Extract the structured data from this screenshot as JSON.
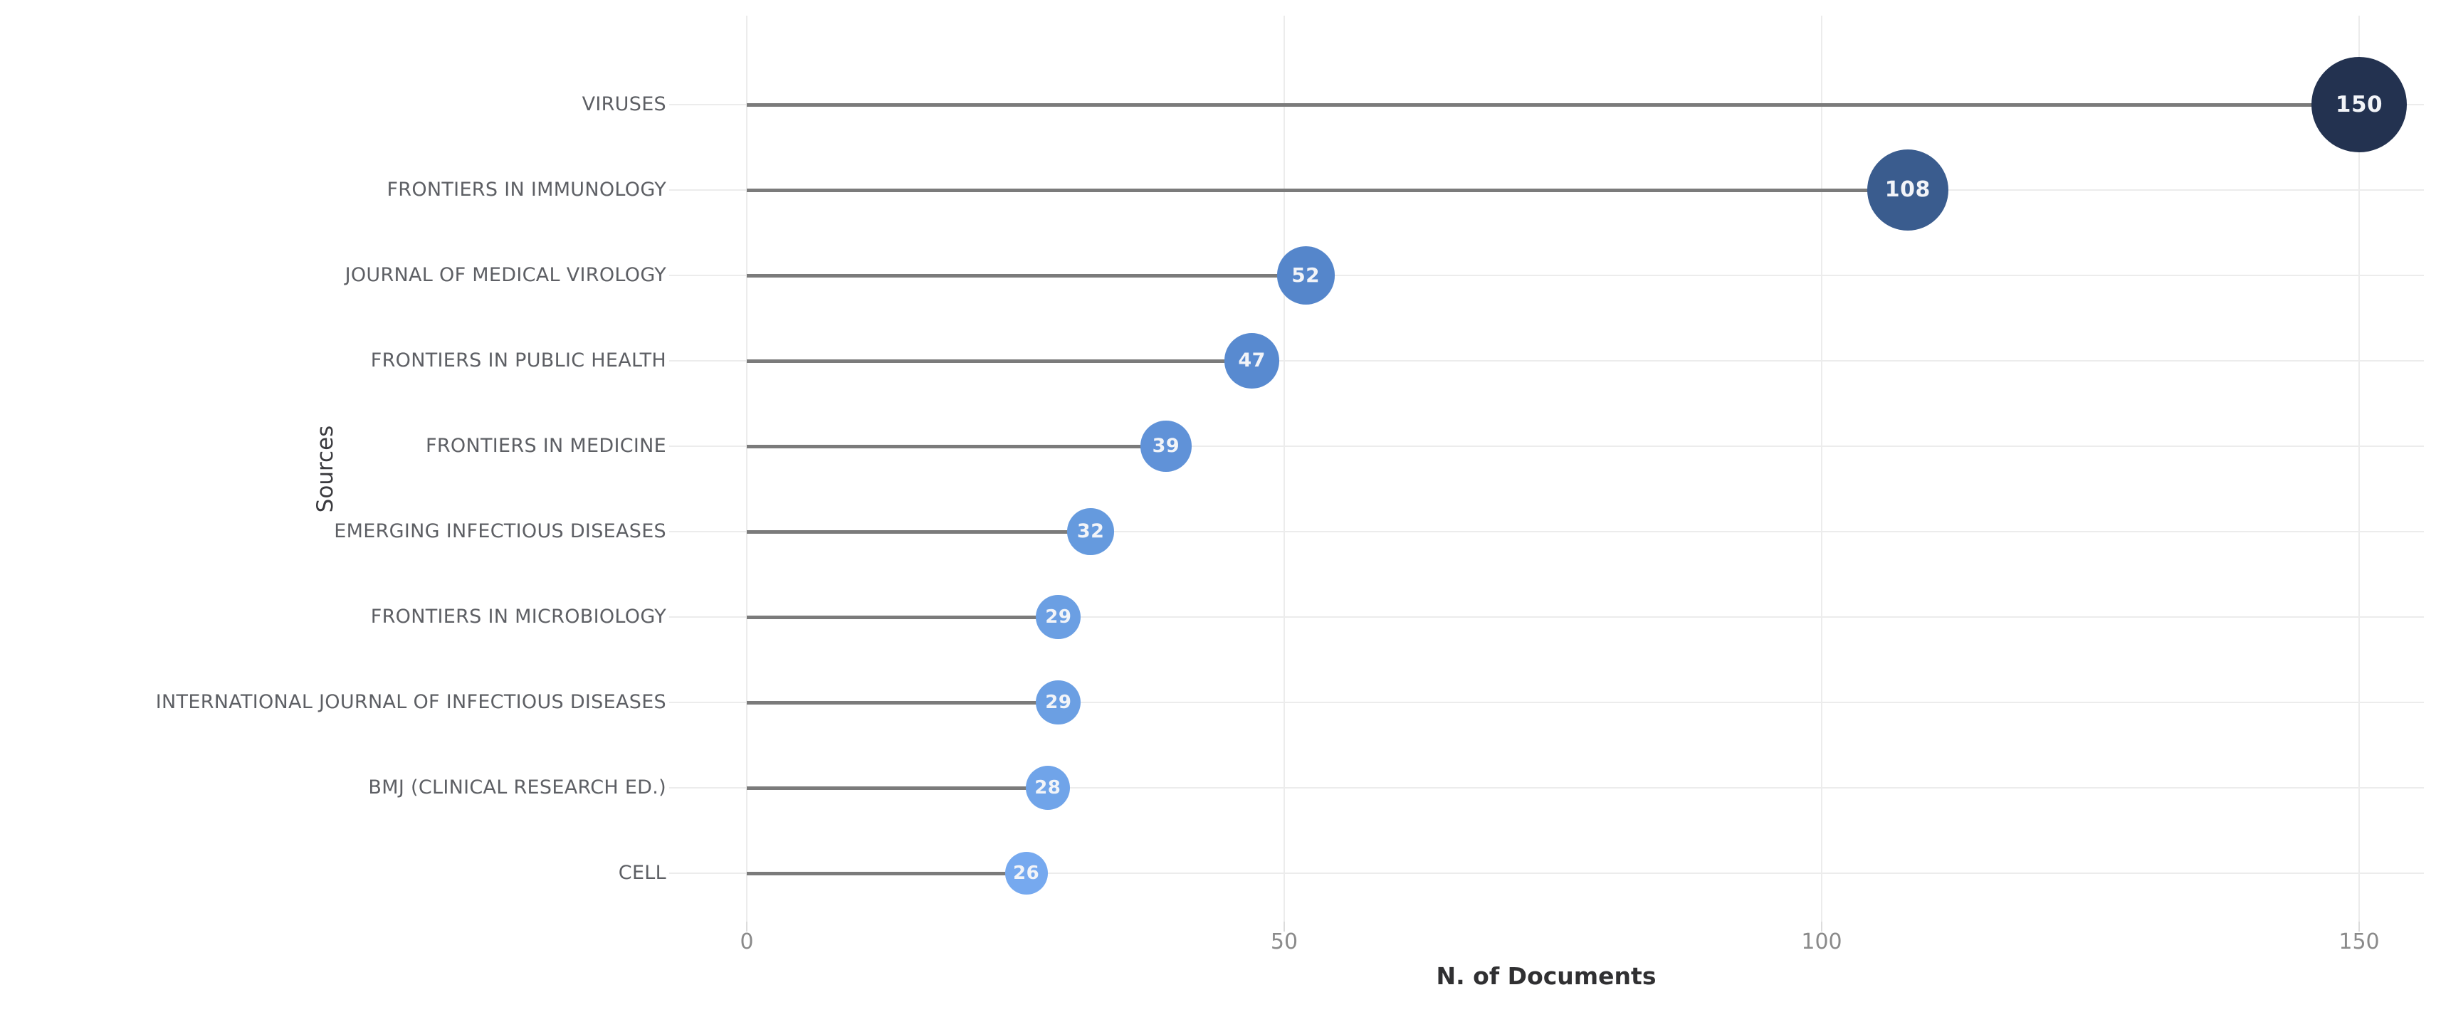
{
  "chart_data": {
    "type": "scatter",
    "variant": "horizontal-lollipop",
    "title": "",
    "xlabel": "N. of Documents",
    "ylabel": "Sources",
    "categories": [
      "VIRUSES",
      "FRONTIERS IN IMMUNOLOGY",
      "JOURNAL OF MEDICAL VIROLOGY",
      "FRONTIERS IN PUBLIC HEALTH",
      "FRONTIERS IN MEDICINE",
      "EMERGING INFECTIOUS DISEASES",
      "FRONTIERS IN MICROBIOLOGY",
      "INTERNATIONAL JOURNAL OF INFECTIOUS DISEASES",
      "BMJ (CLINICAL RESEARCH ED.)",
      "CELL"
    ],
    "values": [
      150,
      108,
      52,
      47,
      39,
      32,
      29,
      29,
      28,
      26
    ],
    "point_colors": [
      "#233250",
      "#3a5c8e",
      "#5586cb",
      "#588ad0",
      "#6092d8",
      "#659ade",
      "#6b9fe3",
      "#6b9fe3",
      "#70a4e9",
      "#76a9ef"
    ],
    "x_ticks": [
      0,
      50,
      100,
      150
    ],
    "xlim": [
      -7,
      156
    ],
    "grid": true,
    "legend": "none",
    "colors": {
      "background": "#ffffff",
      "stem": "#7b7b7b",
      "gridline": "#ececec",
      "category_label": "#5d5f64",
      "tick_label": "#8a8a8a",
      "axis_title": "#303032",
      "bubble_text": "#f2f4f8"
    }
  }
}
